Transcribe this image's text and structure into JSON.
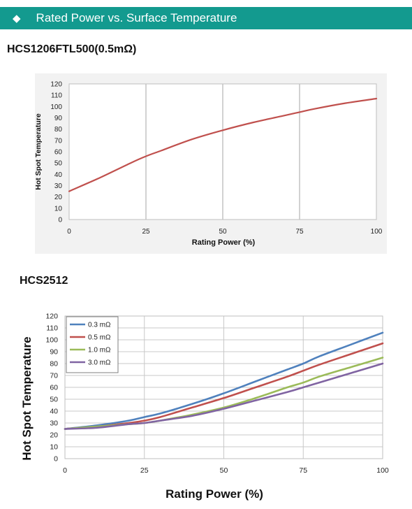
{
  "banner": {
    "icon": "diamond-icon",
    "title": "Rated Power vs. Surface Temperature",
    "color": "#139a8f"
  },
  "sections": [
    {
      "subtitle": "HCS1206FTL500(0.5mΩ)"
    },
    {
      "subtitle": "HCS2512"
    }
  ],
  "chart_data": [
    {
      "type": "line",
      "title": "HCS1206FTL500(0.5mΩ)",
      "xlabel": "Rating Power (%)",
      "ylabel": "Hot Spot Temperature",
      "xlim": [
        0,
        100
      ],
      "ylim": [
        0,
        120
      ],
      "xticks": [
        0,
        25,
        50,
        75,
        100
      ],
      "yticks": [
        0,
        10,
        20,
        30,
        40,
        50,
        60,
        70,
        80,
        90,
        100,
        110,
        120
      ],
      "grid": "vertical",
      "legend": "none",
      "series": [
        {
          "color": "#c0504d",
          "x": [
            0,
            10,
            20,
            25,
            30,
            40,
            50,
            60,
            70,
            75,
            80,
            90,
            100
          ],
          "y": [
            25,
            37,
            50,
            56,
            61,
            71,
            79,
            86,
            92,
            95,
            98,
            103,
            107
          ]
        }
      ]
    },
    {
      "type": "line",
      "title": "HCS2512",
      "xlabel": "Rating Power (%)",
      "ylabel": "Hot Spot Temperature",
      "xlim": [
        0,
        100
      ],
      "ylim": [
        0,
        120
      ],
      "xticks": [
        0,
        25,
        50,
        75,
        100
      ],
      "yticks": [
        0,
        10,
        20,
        30,
        40,
        50,
        60,
        70,
        80,
        90,
        100,
        110,
        120
      ],
      "grid": "both",
      "legend": "top-left",
      "series": [
        {
          "name": "0.3 mΩ",
          "color": "#4f81bd",
          "x": [
            0,
            10,
            20,
            25,
            30,
            40,
            50,
            60,
            70,
            75,
            80,
            90,
            100
          ],
          "y": [
            25,
            28,
            32,
            35,
            38,
            46,
            55,
            65,
            75,
            80,
            86,
            96,
            106
          ]
        },
        {
          "name": "0.5 mΩ",
          "color": "#c0504d",
          "x": [
            0,
            10,
            20,
            25,
            30,
            40,
            50,
            60,
            70,
            75,
            80,
            90,
            100
          ],
          "y": [
            25,
            27,
            30,
            32,
            35,
            43,
            51,
            60,
            69,
            74,
            79,
            88,
            97
          ]
        },
        {
          "name": "1.0 mΩ",
          "color": "#9bbb59",
          "x": [
            0,
            10,
            20,
            25,
            30,
            40,
            50,
            60,
            70,
            75,
            80,
            90,
            100
          ],
          "y": [
            25,
            27,
            29,
            30,
            32,
            37,
            43,
            51,
            60,
            64,
            69,
            77,
            85
          ]
        },
        {
          "name": "3.0 mΩ",
          "color": "#8064a2",
          "x": [
            0,
            10,
            20,
            25,
            30,
            40,
            50,
            60,
            70,
            75,
            80,
            90,
            100
          ],
          "y": [
            25,
            26,
            29,
            30,
            32,
            36,
            42,
            49,
            56,
            60,
            64,
            72,
            80
          ]
        }
      ]
    }
  ]
}
